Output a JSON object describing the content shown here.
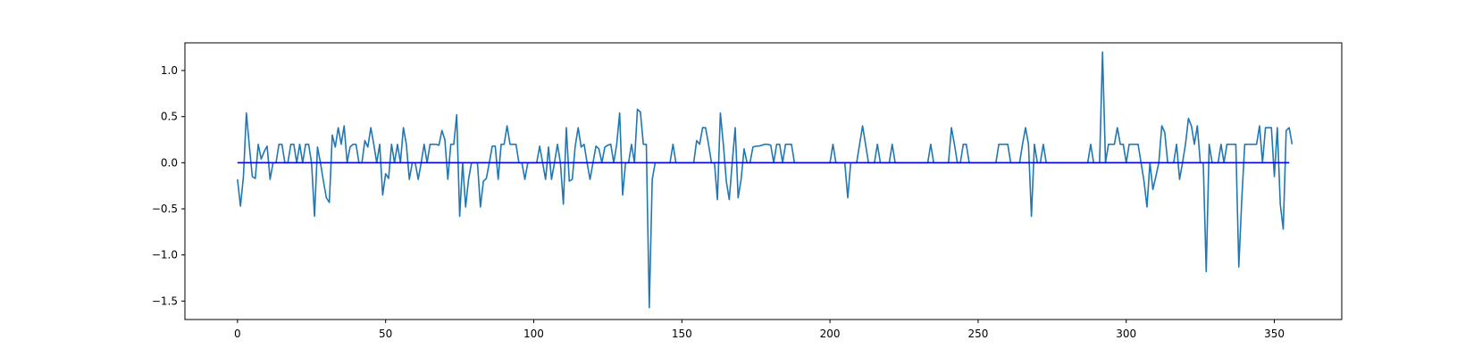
{
  "chart_data": {
    "type": "line",
    "title": "",
    "xlabel": "",
    "ylabel": "",
    "xlim": [
      -17.75,
      372.75
    ],
    "ylim": [
      -1.7,
      1.3
    ],
    "xticks": [
      0,
      50,
      100,
      150,
      200,
      250,
      300,
      350
    ],
    "yticks": [
      -1.5,
      -1.0,
      -0.5,
      0.0,
      0.5,
      1.0
    ],
    "ytick_labels": [
      "−1.5",
      "−1.0",
      "−0.5",
      "0.0",
      "0.5",
      "1.0"
    ],
    "grid": false,
    "legend": "none",
    "series": [
      {
        "color": "#1f77b4",
        "values": [
          -0.18,
          -0.47,
          -0.15,
          0.54,
          0.18,
          -0.15,
          -0.17,
          0.2,
          0.04,
          0.12,
          0.18,
          -0.18,
          0,
          0,
          0.2,
          0.2,
          0,
          0,
          0.2,
          0.2,
          0,
          0.2,
          0,
          0.2,
          0.2,
          0,
          -0.58,
          0.17,
          0,
          -0.2,
          -0.38,
          -0.43,
          0.3,
          0.17,
          0.38,
          0.2,
          0.4,
          0,
          0.17,
          0.2,
          0.2,
          0,
          0,
          0.24,
          0.17,
          0.38,
          0.2,
          0,
          0.2,
          -0.35,
          -0.12,
          -0.17,
          0.2,
          0,
          0.2,
          0,
          0.38,
          0.2,
          -0.18,
          0,
          0,
          -0.18,
          0,
          0.2,
          0,
          0.2,
          0.2,
          0.2,
          0.19,
          0.35,
          0.25,
          -0.18,
          0.2,
          0.2,
          0.52,
          -0.58,
          0,
          -0.48,
          -0.18,
          0,
          0,
          0,
          -0.48,
          -0.2,
          -0.17,
          0,
          0.18,
          0.18,
          -0.18,
          0.2,
          0.2,
          0.4,
          0.2,
          0.2,
          0.2,
          0,
          0,
          -0.18,
          0,
          0,
          0,
          0,
          0.18,
          0,
          -0.18,
          0.17,
          -0.18,
          0,
          0.2,
          0,
          -0.45,
          0.38,
          -0.2,
          -0.18,
          0.18,
          0.38,
          0.17,
          0.2,
          0,
          -0.18,
          0,
          0.18,
          0.15,
          0,
          0.17,
          0.19,
          0.2,
          0,
          0.2,
          0.54,
          -0.35,
          0,
          0,
          0.2,
          0,
          0.58,
          0.55,
          0.2,
          0.2,
          -1.57,
          -0.18,
          0,
          0,
          0,
          0,
          0,
          0,
          0.2,
          0,
          0,
          0,
          0,
          0,
          0,
          0,
          0.24,
          0.2,
          0.38,
          0.38,
          0.2,
          0,
          0,
          -0.4,
          0.54,
          0.2,
          -0.2,
          -0.4,
          0,
          0.38,
          -0.38,
          -0.18,
          0.15,
          0,
          0,
          0.17,
          0.18,
          0.18,
          0.19,
          0.2,
          0.2,
          0.19,
          0,
          0.2,
          0.2,
          0,
          0.2,
          0.2,
          0.2,
          0,
          0,
          0,
          0,
          0,
          0,
          0,
          0,
          0,
          0,
          0,
          0,
          0,
          0.2,
          0,
          0,
          0,
          0,
          -0.38,
          0,
          0,
          0,
          0.2,
          0.4,
          0.2,
          0,
          0,
          0,
          0.2,
          0,
          0,
          0,
          0,
          0.2,
          0,
          0,
          0,
          0,
          0,
          0,
          0,
          0,
          0,
          0,
          0,
          0,
          0.2,
          0,
          0,
          0,
          0,
          0,
          0,
          0.38,
          0.2,
          0,
          0,
          0.2,
          0.2,
          0,
          0,
          0,
          0,
          0,
          0,
          0,
          0,
          0,
          0,
          0.2,
          0.2,
          0.2,
          0.2,
          0,
          0,
          0,
          0,
          0.2,
          0.38,
          0.2,
          -0.58,
          0.2,
          0,
          0,
          0.2,
          0,
          0,
          0,
          0,
          0,
          0,
          0,
          0,
          0,
          0,
          0,
          0,
          0,
          0,
          0,
          0.2,
          0,
          0,
          0,
          1.2,
          0,
          0.2,
          0.2,
          0.2,
          0.38,
          0.2,
          0.2,
          0,
          0.2,
          0.2,
          0.2,
          0.2,
          0,
          -0.2,
          -0.48,
          0,
          -0.29,
          -0.15,
          0,
          0.4,
          0.33,
          0,
          0,
          0,
          0.2,
          -0.18,
          0,
          0.2,
          0.48,
          0.4,
          0.2,
          0.4,
          0,
          0,
          -1.18,
          0.2,
          0,
          0,
          0,
          0.2,
          0,
          0.2,
          0.2,
          0.2,
          0.2,
          -1.13,
          -0.4,
          0.2,
          0.2,
          0.2,
          0.2,
          0.2,
          0.4,
          0,
          0.38,
          0.38,
          0.38,
          -0.15,
          0.38,
          -0.45,
          -0.72,
          0.35,
          0.38,
          0.2
        ]
      },
      {
        "color": "#0000ff",
        "x": [
          0,
          355
        ],
        "values": [
          0,
          0
        ]
      }
    ]
  }
}
